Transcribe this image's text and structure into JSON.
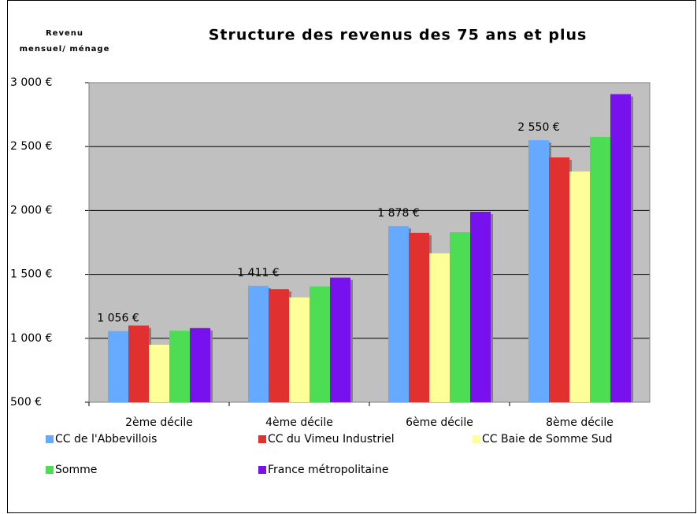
{
  "chart_data": {
    "type": "bar",
    "title": "Structure des revenus des 75 ans et plus",
    "ylabel": [
      "Revenu",
      "mensuel/ ménage"
    ],
    "categories": [
      "2ème décile",
      "4ème décile",
      "6ème décile",
      "8ème décile"
    ],
    "series": [
      {
        "name": "CC de l'Abbevillois",
        "color": "#66aaff",
        "values": [
          1056,
          1411,
          1878,
          2550
        ],
        "value_labels": [
          "1 056  €",
          "1 411  €",
          "1 878  €",
          "2 550  €"
        ]
      },
      {
        "name": "CC du Vimeu Industriel",
        "color": "#e03030",
        "values": [
          1100,
          1385,
          1825,
          2415
        ]
      },
      {
        "name": "CC Baie de Somme Sud",
        "color": "#ffff99",
        "values": [
          950,
          1320,
          1665,
          2305
        ]
      },
      {
        "name": "Somme",
        "color": "#4ddd55",
        "values": [
          1060,
          1405,
          1830,
          2575
        ]
      },
      {
        "name": "France métropolitaine",
        "color": "#7711ee",
        "values": [
          1080,
          1475,
          1990,
          2910
        ]
      }
    ],
    "ylim": [
      500,
      3000
    ],
    "yticks": [
      {
        "value": 500,
        "label": "500  €"
      },
      {
        "value": 1000,
        "label": "1 000  €"
      },
      {
        "value": 1500,
        "label": "1 500  €"
      },
      {
        "value": 2000,
        "label": "2 000  €"
      },
      {
        "value": 2500,
        "label": "2 500  €"
      },
      {
        "value": 3000,
        "label": "3 000  €"
      }
    ],
    "grid": true,
    "legend": "bottom",
    "plot_background": "#c0c0c0"
  }
}
